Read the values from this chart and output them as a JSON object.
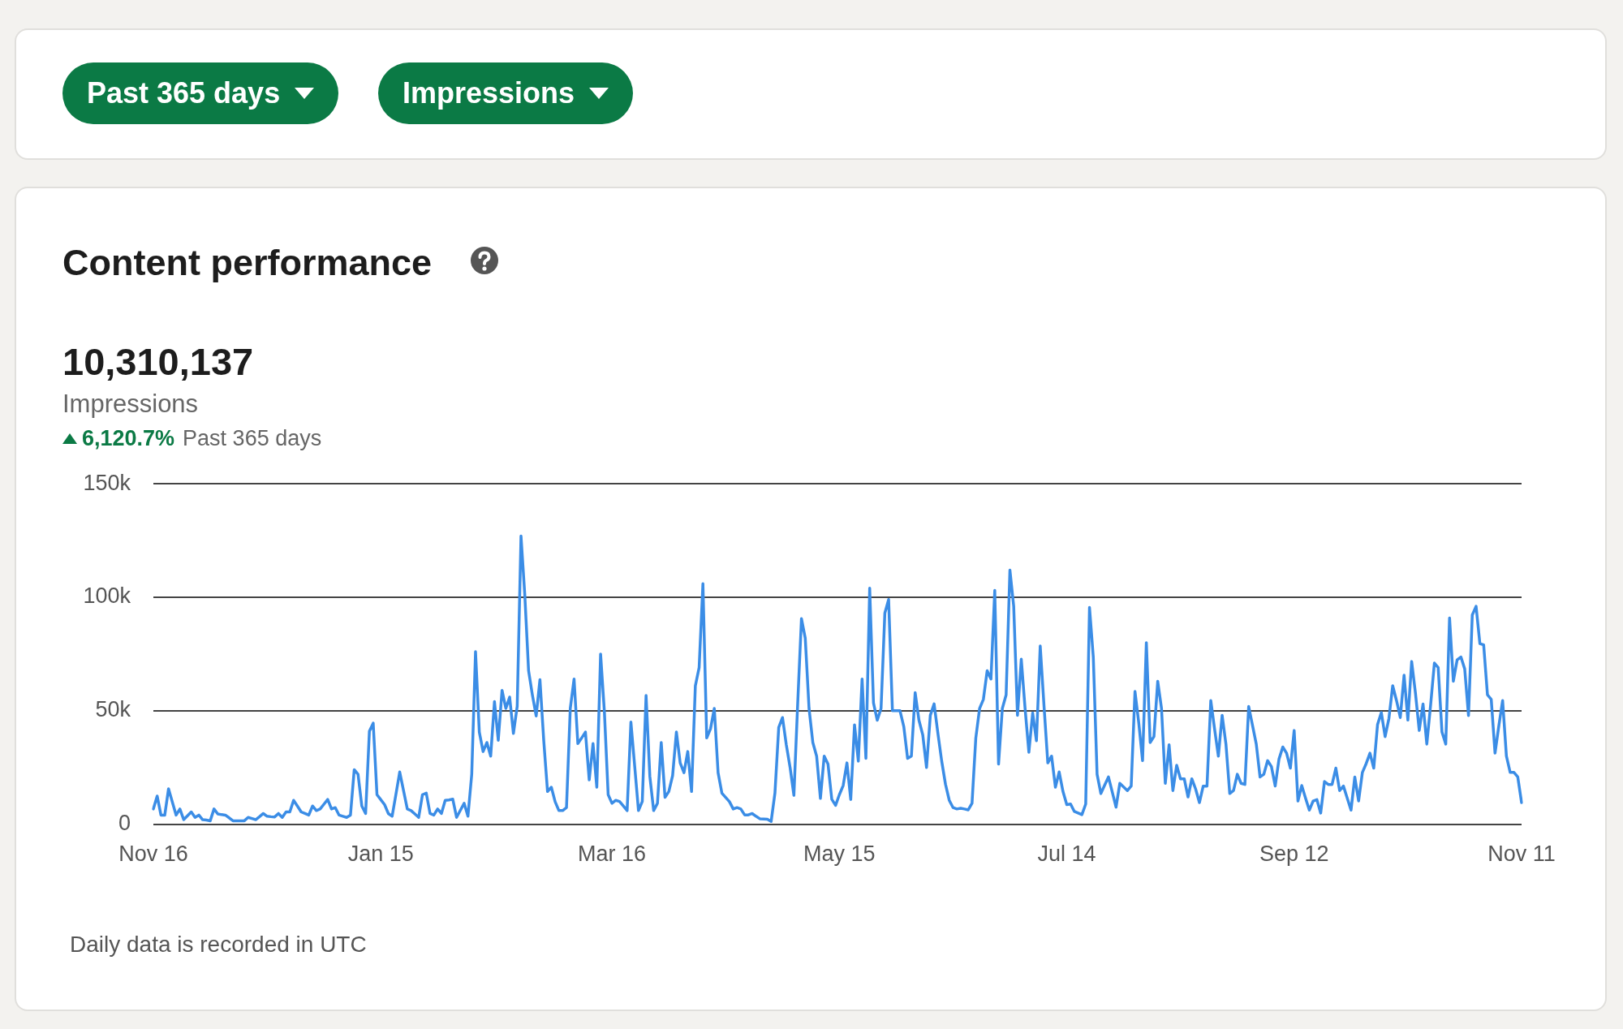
{
  "chart_data": {
    "type": "line",
    "title": "Content performance",
    "subtitle": "10,310,137",
    "annotations": [
      "Past 365 days",
      "Impressions",
      "Impressions",
      "6,120.7%",
      "Past 365 days",
      "Daily data is recorded in UTC"
    ],
    "categories": [
      "Nov 16",
      null,
      null,
      null,
      null,
      null,
      null,
      null,
      null,
      null,
      null,
      null,
      null,
      null,
      null,
      null,
      null,
      null,
      null,
      null,
      null,
      null,
      null,
      null,
      null,
      null,
      null,
      null,
      null,
      null,
      null,
      null,
      null,
      null,
      null,
      null,
      null,
      null,
      null,
      null,
      null,
      null,
      null,
      null,
      null,
      null,
      null,
      null,
      null,
      null,
      null,
      null,
      null,
      null,
      null,
      null,
      null,
      null,
      null,
      null,
      "Jan 15",
      null,
      null,
      null,
      null,
      null,
      null,
      null,
      null,
      null,
      null,
      null,
      null,
      null,
      null,
      null,
      null,
      null,
      null,
      null,
      null,
      null,
      null,
      null,
      null,
      null,
      null,
      null,
      null,
      null,
      null,
      null,
      null,
      null,
      null,
      null,
      null,
      null,
      null,
      null,
      null,
      null,
      null,
      null,
      null,
      null,
      null,
      null,
      null,
      null,
      null,
      null,
      null,
      null,
      null,
      null,
      null,
      null,
      null,
      null,
      null,
      "Mar 16",
      null,
      null,
      null,
      null,
      null,
      null,
      null,
      null,
      null,
      null,
      null,
      null,
      null,
      null,
      null,
      null,
      null,
      null,
      null,
      null,
      null,
      null,
      null,
      null,
      null,
      null,
      null,
      null,
      null,
      null,
      null,
      null,
      null,
      null,
      null,
      null,
      null,
      null,
      null,
      null,
      null,
      null,
      null,
      null,
      null,
      null,
      null,
      null,
      null,
      null,
      null,
      null,
      null,
      null,
      null,
      null,
      null,
      null,
      null,
      "May 15",
      null,
      null,
      null,
      null,
      null,
      null,
      null,
      null,
      null,
      null,
      null,
      null,
      null,
      null,
      null,
      null,
      null,
      null,
      null,
      null,
      null,
      null,
      null,
      null,
      null,
      null,
      null,
      null,
      null,
      null,
      null,
      null,
      null,
      null,
      null,
      null,
      null,
      null,
      null,
      null,
      null,
      null,
      null,
      null,
      null,
      null,
      null,
      null,
      null,
      null,
      null,
      null,
      null,
      null,
      null,
      null,
      null,
      null,
      null,
      "Jul 14",
      null,
      null,
      null,
      null,
      null,
      null,
      null,
      null,
      null,
      null,
      null,
      null,
      null,
      null,
      null,
      null,
      null,
      null,
      null,
      null,
      null,
      null,
      null,
      null,
      null,
      null,
      null,
      null,
      null,
      null,
      null,
      null,
      null,
      null,
      null,
      null,
      null,
      null,
      null,
      null,
      null,
      null,
      null,
      null,
      null,
      null,
      null,
      null,
      null,
      null,
      null,
      null,
      null,
      null,
      null,
      null,
      null,
      null,
      null,
      "Sep 12",
      null,
      null,
      null,
      null,
      null,
      null,
      null,
      null,
      null,
      null,
      null,
      null,
      null,
      null,
      null,
      null,
      null,
      null,
      null,
      null,
      null,
      null,
      null,
      null,
      null,
      null,
      null,
      null,
      null,
      null,
      null,
      null,
      null,
      null,
      null,
      null,
      null,
      null,
      null,
      null,
      null,
      null,
      null,
      null,
      null,
      null,
      null,
      null,
      null,
      null,
      null,
      null,
      null,
      null,
      null,
      null,
      null,
      null,
      null,
      "Nov 11"
    ],
    "series": [
      {
        "color": "#3b8de6",
        "values": [
          6700,
          12400,
          4000,
          4000,
          15600,
          9800,
          4000,
          6700,
          2000,
          3700,
          5400,
          3000,
          4000,
          2000,
          1800,
          1500,
          6700,
          4500,
          4200,
          4000,
          2800,
          1500,
          1500,
          1500,
          1500,
          3000,
          2500,
          2000,
          3300,
          4700,
          3500,
          3300,
          3200,
          4700,
          3000,
          5400,
          5400,
          10500,
          8000,
          5400,
          4700,
          4000,
          8000,
          6000,
          6700,
          8800,
          10900,
          6700,
          7300,
          4000,
          3500,
          3000,
          4000,
          24000,
          22000,
          8000,
          4700,
          41000,
          44500,
          13000,
          10800,
          8600,
          4700,
          3500,
          13200,
          23000,
          14800,
          6700,
          6000,
          4500,
          3000,
          13000,
          13700,
          4700,
          4000,
          6700,
          4700,
          10500,
          10700,
          11000,
          3000,
          6100,
          9200,
          3500,
          22000,
          76000,
          40600,
          32000,
          36000,
          30000,
          54000,
          37000,
          59000,
          51000,
          56000,
          40000,
          52000,
          127000,
          101000,
          67600,
          57000,
          47700,
          63700,
          36800,
          14400,
          16300,
          9900,
          6000,
          6000,
          7300,
          51000,
          64000,
          35500,
          38000,
          40600,
          19500,
          35500,
          16300,
          75000,
          49600,
          13000,
          9200,
          10500,
          10000,
          8000,
          6000,
          45000,
          25500,
          6000,
          10000,
          56700,
          21000,
          6000,
          9200,
          36000,
          11800,
          14400,
          21400,
          40600,
          27000,
          22700,
          32000,
          14400,
          61000,
          69000,
          106000,
          38000,
          42000,
          51000,
          22700,
          13700,
          11800,
          9900,
          6700,
          7300,
          6700,
          4100,
          4100,
          4700,
          3500,
          2400,
          2300,
          2200,
          1200,
          13700,
          42600,
          47000,
          35000,
          25000,
          12700,
          53000,
          90600,
          82000,
          51000,
          36000,
          30000,
          11400,
          30000,
          26500,
          11000,
          8300,
          13000,
          17000,
          27000,
          10900,
          43800,
          27800,
          64000,
          29000,
          104000,
          53500,
          45800,
          51000,
          93000,
          99000,
          50000,
          50000,
          50000,
          43000,
          29000,
          30000,
          58000,
          45800,
          39400,
          25000,
          48000,
          53000,
          40000,
          27800,
          17600,
          10500,
          7300,
          6700,
          7000,
          6700,
          6300,
          9200,
          38000,
          51000,
          55000,
          67600,
          64000,
          103000,
          26500,
          51000,
          57000,
          112000,
          96000,
          48000,
          72700,
          51000,
          31700,
          49000,
          36800,
          78500,
          52000,
          27000,
          30000,
          16300,
          23000,
          14400,
          8600,
          8900,
          5600,
          4900,
          4200,
          8900,
          95500,
          73700,
          22000,
          13500,
          17200,
          20800,
          14200,
          7500,
          18000,
          16400,
          14800,
          16800,
          58500,
          44600,
          28000,
          80000,
          36000,
          38600,
          63000,
          51000,
          18000,
          35000,
          14800,
          26000,
          20000,
          20000,
          12000,
          20000,
          15500,
          9500,
          16800,
          16800,
          54500,
          42000,
          30000,
          48000,
          35300,
          13500,
          14800,
          22000,
          18000,
          17500,
          51900,
          43600,
          35300,
          20800,
          22000,
          28000,
          25400,
          16800,
          28700,
          34000,
          31300,
          24700,
          41300,
          10200,
          17000,
          11500,
          6200,
          10200,
          10800,
          4900,
          18800,
          17500,
          17500,
          24700,
          14800,
          16800,
          11500,
          6200,
          20800,
          10200,
          22800,
          26700,
          31300,
          24700,
          43900,
          49200,
          38600,
          46600,
          61000,
          54500,
          47000,
          65700,
          45900,
          71700,
          57800,
          41300,
          53000,
          35300,
          52500,
          71000,
          69000,
          40600,
          35300,
          90900,
          63000,
          72400,
          73700,
          68400,
          47900,
          92200,
          96000,
          79600,
          79000,
          57000,
          55000,
          31300,
          43300,
          54500,
          30000,
          22800,
          22800,
          20800,
          9500
        ]
      }
    ],
    "ylim": [
      0,
      150000
    ],
    "yticks": [
      0,
      {
        "value": 50000,
        "label": "50k"
      },
      {
        "value": 100000,
        "label": "100k"
      },
      {
        "value": 150000,
        "label": "150k"
      }
    ],
    "grid": "y"
  }
}
